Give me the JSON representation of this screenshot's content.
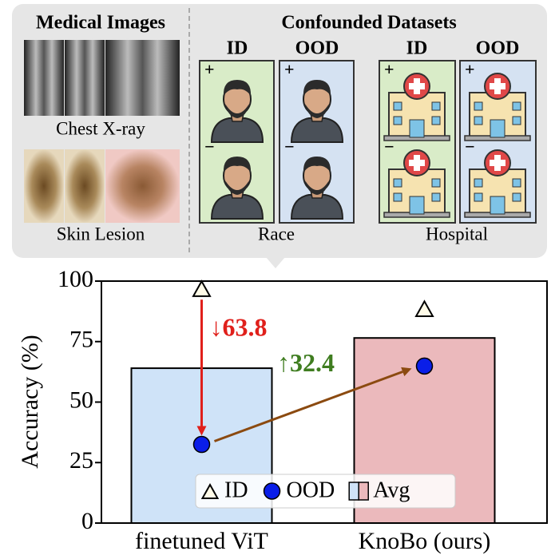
{
  "panel": {
    "left_title": "Medical Images",
    "image_captions": [
      "Chest X-ray",
      "Skin Lesion"
    ],
    "right_title": "Confounded Datasets",
    "groups": [
      {
        "label": "Race",
        "columns": [
          "ID",
          "OOD"
        ]
      },
      {
        "label": "Hospital",
        "columns": [
          "ID",
          "OOD"
        ]
      }
    ],
    "signs": [
      "+",
      "−"
    ]
  },
  "chart_data": {
    "type": "bar",
    "y_label": "Accuracy (%)",
    "categories": [
      "finetuned ViT",
      "KnoBo (ours)"
    ],
    "series": [
      {
        "name": "ID",
        "marker": "triangle",
        "color": "#fffbe8",
        "values": [
          96.3,
          88
        ]
      },
      {
        "name": "OOD",
        "marker": "circle",
        "color": "#0a1ee8",
        "values": [
          32.5,
          64.9
        ]
      },
      {
        "name": "Avg",
        "marker": "bar",
        "colors": [
          "#cfe3f8",
          "#ebb9bc"
        ],
        "values": [
          64,
          76.5
        ]
      }
    ],
    "annotations": [
      {
        "text": "↓63.8",
        "color": "#e0201b"
      },
      {
        "text": "↑32.4",
        "color": "#3f7d20"
      }
    ],
    "ylim": [
      0,
      100
    ],
    "yticks": [
      0,
      25,
      50,
      75,
      100
    ],
    "legend": "bottom-center",
    "grid": false
  }
}
